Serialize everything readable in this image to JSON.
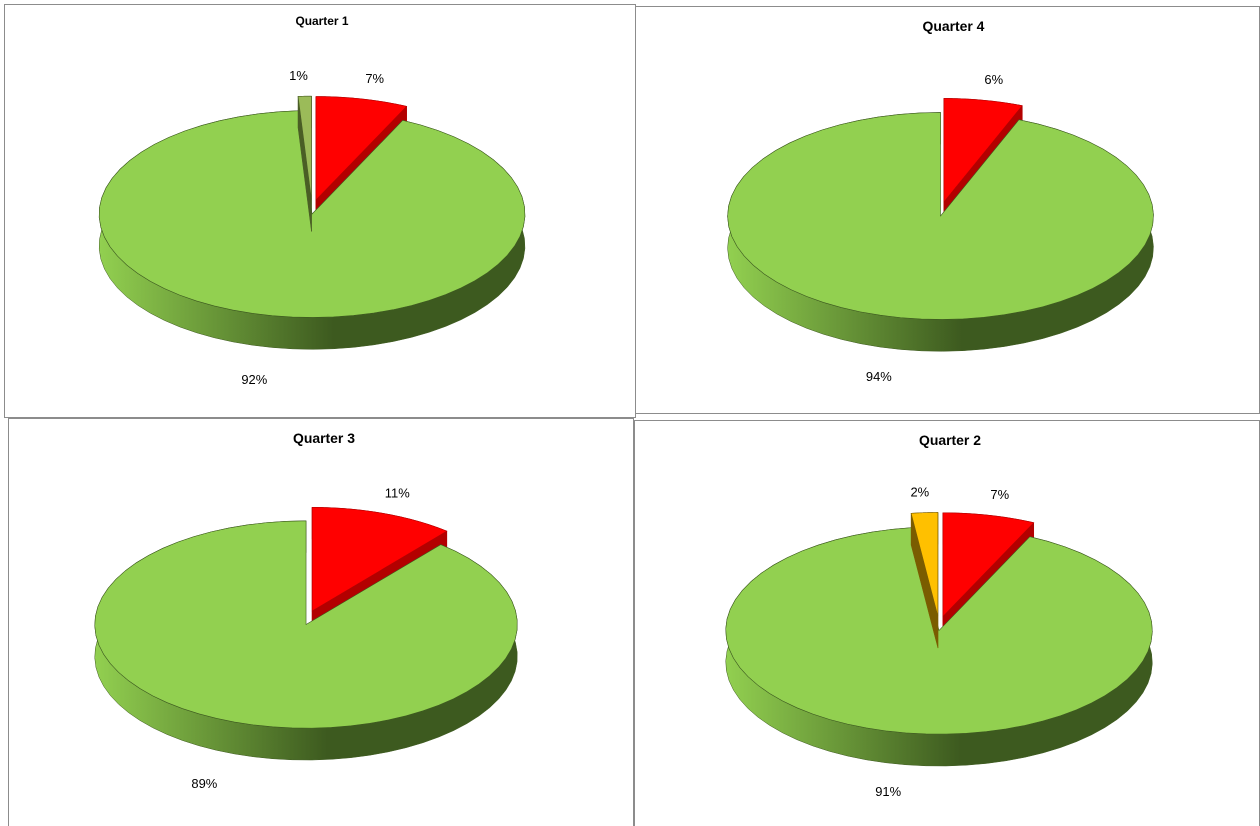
{
  "chart_data": [
    {
      "type": "pie",
      "title": "Quarter 1",
      "slices": [
        {
          "value": 7,
          "label": "7%",
          "color": "#ff0000",
          "dark": "#b30000",
          "exploded": true
        },
        {
          "value": 92,
          "label": "92%",
          "color": "#92d050",
          "dark": "#3d5a1f",
          "exploded": false
        },
        {
          "value": 1,
          "label": "1%",
          "color": "#9bbb59",
          "dark": "#4a5e25",
          "exploded": true
        }
      ]
    },
    {
      "type": "pie",
      "title": "Quarter 4",
      "slices": [
        {
          "value": 6,
          "label": "6%",
          "color": "#ff0000",
          "dark": "#b30000",
          "exploded": true
        },
        {
          "value": 94,
          "label": "94%",
          "color": "#92d050",
          "dark": "#3d5a1f",
          "exploded": false
        }
      ]
    },
    {
      "type": "pie",
      "title": "Quarter 3",
      "slices": [
        {
          "value": 11,
          "label": "11%",
          "color": "#ff0000",
          "dark": "#b30000",
          "exploded": true
        },
        {
          "value": 89,
          "label": "89%",
          "color": "#92d050",
          "dark": "#3d5a1f",
          "exploded": false
        }
      ]
    },
    {
      "type": "pie",
      "title": "Quarter 2",
      "slices": [
        {
          "value": 7,
          "label": "7%",
          "color": "#ff0000",
          "dark": "#b30000",
          "exploded": true
        },
        {
          "value": 91,
          "label": "91%",
          "color": "#92d050",
          "dark": "#3d5a1f",
          "exploded": false
        },
        {
          "value": 2,
          "label": "2%",
          "color": "#ffc000",
          "dark": "#7a5c00",
          "exploded": true
        }
      ]
    }
  ]
}
